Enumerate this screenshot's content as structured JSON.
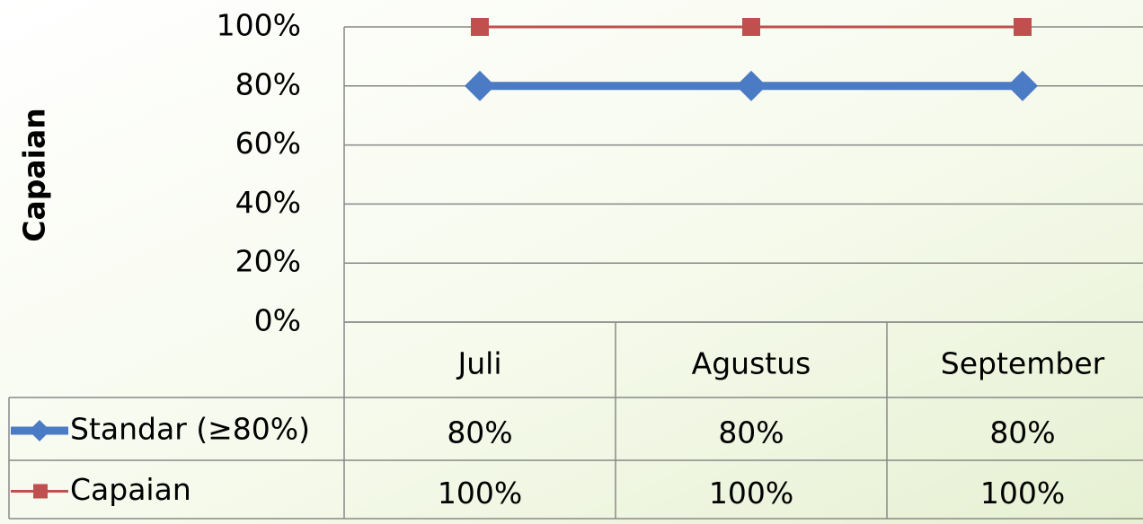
{
  "chart_data": {
    "type": "line",
    "y_label": "Capaian",
    "categories": [
      "Juli",
      "Agustus",
      "September"
    ],
    "series": [
      {
        "name": "Standar (≥80%)",
        "color": "#4a7bc4",
        "marker": "diamond",
        "values": [
          80,
          80,
          80
        ],
        "value_labels": [
          "80%",
          "80%",
          "80%"
        ]
      },
      {
        "name": "Capaian",
        "color": "#c0504d",
        "marker": "square",
        "values": [
          100,
          100,
          100
        ],
        "value_labels": [
          "100%",
          "100%",
          "100%"
        ]
      }
    ],
    "ylim": [
      0,
      100
    ],
    "yticks": [
      {
        "value": 0,
        "label": "0%"
      },
      {
        "value": 20,
        "label": "20%"
      },
      {
        "value": 40,
        "label": "40%"
      },
      {
        "value": 60,
        "label": "60%"
      },
      {
        "value": 80,
        "label": "80%"
      },
      {
        "value": 100,
        "label": "100%"
      }
    ],
    "grid": true,
    "data_table": true
  }
}
